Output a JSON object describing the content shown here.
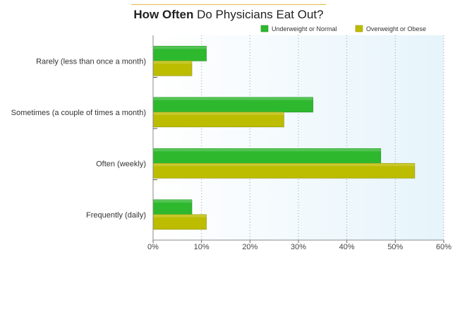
{
  "chart_data": {
    "type": "bar",
    "orientation": "horizontal",
    "title_bold": "How Often",
    "title_rest": " Do Physicians Eat Out?",
    "categories": [
      "Rarely (less than once a month)",
      "Sometimes (a couple of times a month)",
      "Often (weekly)",
      "Frequently (daily)"
    ],
    "series": [
      {
        "name": "Underweight or Normal",
        "values": [
          11,
          33,
          47,
          8
        ],
        "color": "#2eb82e"
      },
      {
        "name": "Overweight or Obese",
        "values": [
          8,
          27,
          54,
          11
        ],
        "color": "#bcbc00"
      }
    ],
    "xlim": [
      0,
      60
    ],
    "x_ticks": [
      "0%",
      "10%",
      "20%",
      "30%",
      "40%",
      "50%",
      "60%"
    ],
    "grid": true,
    "legend_position": "top-right"
  }
}
